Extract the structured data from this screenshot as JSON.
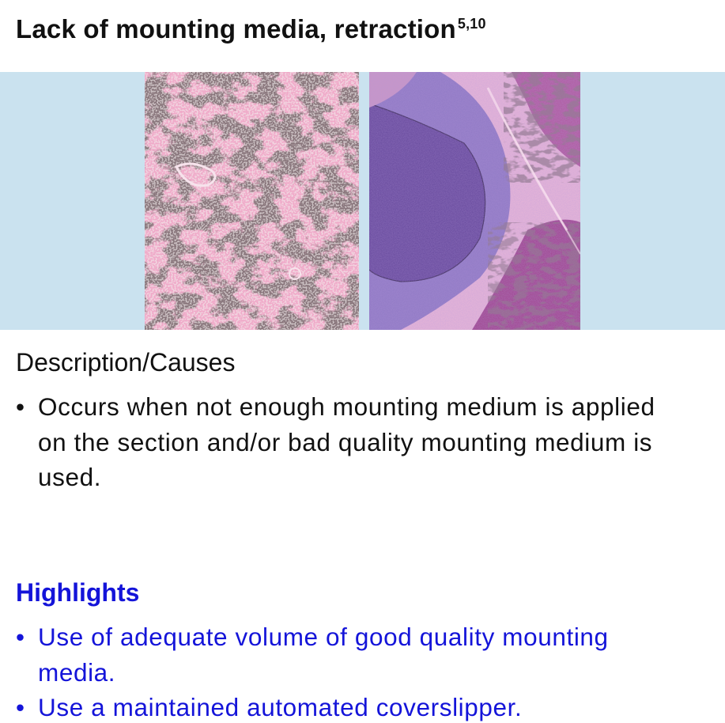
{
  "title": {
    "text": "Lack of mounting media, retraction",
    "superscript": "5,10"
  },
  "images": {
    "left": {
      "name": "micrograph-retraction-pink-tissue"
    },
    "right": {
      "name": "micrograph-retraction-purple-tissue"
    },
    "band_color": "#cae2ef"
  },
  "description": {
    "heading": "Description/Causes",
    "items": [
      "Occurs when not enough mounting medium is applied on the section and/or bad quality mounting medium is used."
    ]
  },
  "highlights": {
    "heading": "Highlights",
    "color": "#1414d9",
    "items": [
      "Use of adequate volume of good quality mounting media.",
      "Use a maintained automated coverslipper."
    ]
  },
  "bullet_symbol": "•"
}
